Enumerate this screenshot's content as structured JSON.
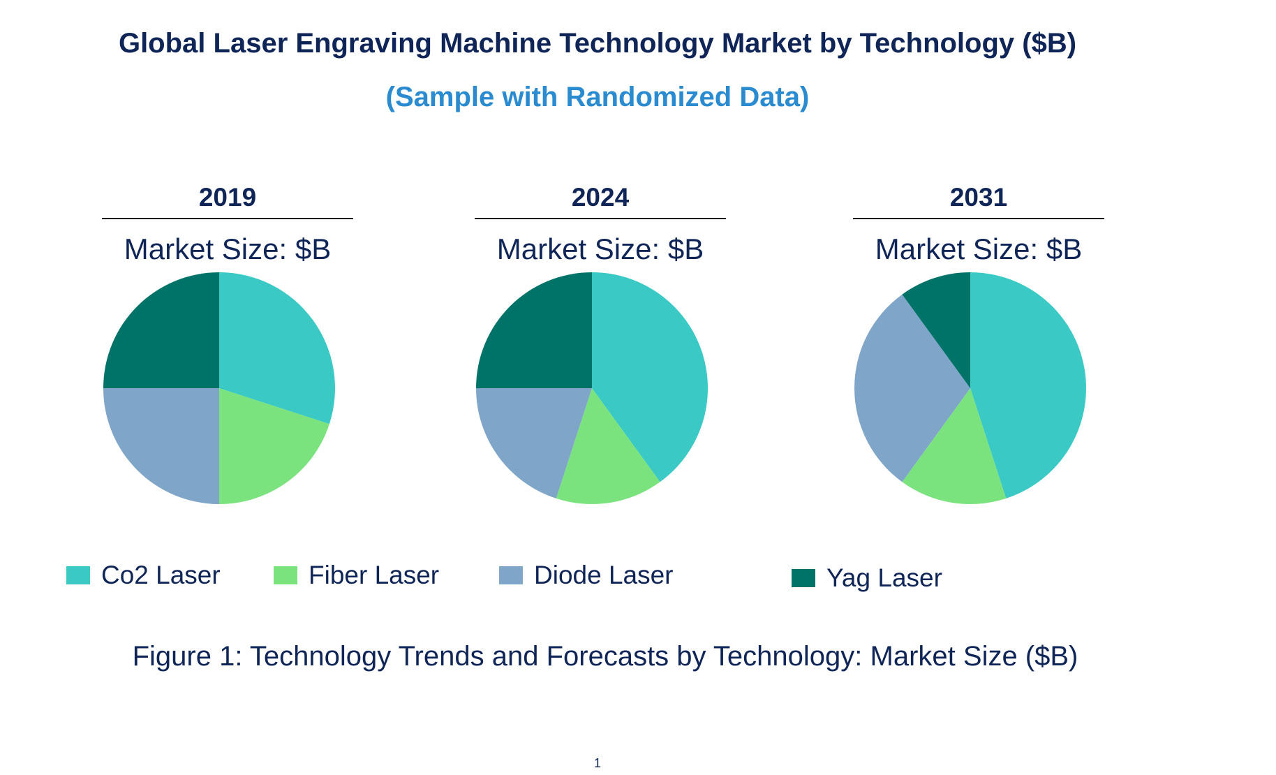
{
  "title": "Global Laser Engraving Machine Technology Market by Technology ($B)",
  "subtitle": "(Sample with Randomized Data)",
  "caption": "Figure 1: Technology Trends and Forecasts by Technology: Market Size ($B)",
  "page_number": "1",
  "chart_data": {
    "type": "pie",
    "categories": [
      "Co2 Laser",
      "Fiber Laser",
      "Diode Laser",
      "Yag Laser"
    ],
    "colors": [
      "#3ac9c4",
      "#7ae37e",
      "#7fa5c9",
      "#007369"
    ],
    "legend_position": "bottom",
    "pies": [
      {
        "year": "2019",
        "market_size_label": "Market Size: $B",
        "values": [
          30,
          20,
          25,
          25
        ]
      },
      {
        "year": "2024",
        "market_size_label": "Market Size: $B",
        "values": [
          40,
          15,
          20,
          25
        ]
      },
      {
        "year": "2031",
        "market_size_label": "Market Size: $B",
        "values": [
          45,
          15,
          30,
          10
        ]
      }
    ]
  }
}
